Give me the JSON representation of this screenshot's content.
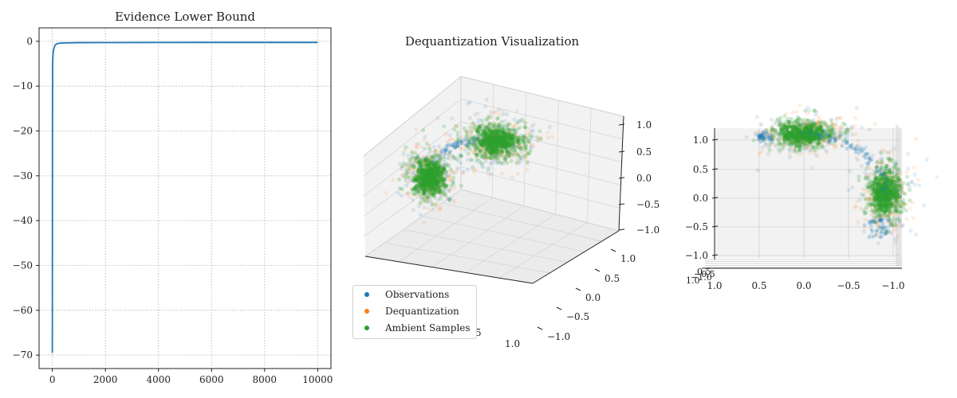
{
  "chart_data": [
    {
      "type": "line",
      "title": "Evidence Lower Bound",
      "xlabel": "",
      "ylabel": "",
      "xlim": [
        -500,
        10500
      ],
      "ylim": [
        -73,
        3
      ],
      "xticks": [
        "0",
        "2000",
        "4000",
        "6000",
        "8000",
        "10000"
      ],
      "yticks": [
        "0",
        "−10",
        "−20",
        "−30",
        "−40",
        "−50",
        "−60",
        "−70"
      ],
      "grid": true,
      "series": [
        {
          "color": "#1f77b4",
          "x": [
            0,
            2,
            5,
            10,
            20,
            30,
            40,
            60,
            80,
            100,
            150,
            200,
            300,
            500,
            1000,
            2000,
            4000,
            6000,
            8000,
            10000
          ],
          "y": [
            -69.5,
            -50,
            -20,
            -5,
            -3.5,
            -2.6,
            -2.2,
            -1.6,
            -1.2,
            -0.9,
            -0.6,
            -0.5,
            -0.4,
            -0.35,
            -0.3,
            -0.28,
            -0.26,
            -0.25,
            -0.25,
            -0.25
          ]
        }
      ]
    },
    {
      "type": "scatter",
      "title": "Dequantization Visualization",
      "projection": "3d",
      "view": "perspective",
      "zticks": [
        "1.0",
        "0.5",
        "0.0",
        "−0.5",
        "−1.0"
      ],
      "yticks": [
        "1.0",
        "0.5",
        "0.0",
        "−0.5",
        "−1.0"
      ],
      "xticks": [
        "0",
        "5",
        "1.0"
      ],
      "series": [
        {
          "name": "Observations",
          "color": "#1f77b4"
        },
        {
          "name": "Dequantization",
          "color": "#ff7f0e"
        },
        {
          "name": "Ambient Samples",
          "color": "#2ca02c"
        }
      ],
      "clusters": [
        {
          "center": [
            0.0,
            -1.0,
            0.0
          ]
        },
        {
          "center": [
            0.0,
            0.0,
            1.0
          ]
        }
      ],
      "legend": "lower-left"
    },
    {
      "type": "scatter",
      "title": "",
      "projection": "3d",
      "view": "side",
      "xticks": [
        "1.0",
        "0.5",
        "0.0",
        "−0.5",
        "−1.0"
      ],
      "zticks": [
        "1.0",
        "0.5",
        "0.0",
        "−0.5",
        "−1.0"
      ],
      "depth_ticks": [
        "−1.0",
        "−0.5",
        "0.5",
        "1.0"
      ],
      "clusters": [
        {
          "center": [
            0.0,
            0.0,
            1.0
          ]
        },
        {
          "center": [
            -1.0,
            0.0,
            0.0
          ]
        }
      ]
    }
  ],
  "legend": {
    "items": [
      {
        "label": "Observations",
        "color": "#1f77b4"
      },
      {
        "label": "Dequantization",
        "color": "#ff7f0e"
      },
      {
        "label": "Ambient Samples",
        "color": "#2ca02c"
      }
    ]
  }
}
